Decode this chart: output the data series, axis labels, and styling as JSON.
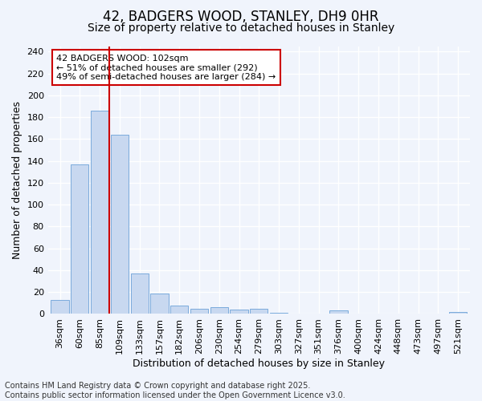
{
  "title": "42, BADGERS WOOD, STANLEY, DH9 0HR",
  "subtitle": "Size of property relative to detached houses in Stanley",
  "xlabel": "Distribution of detached houses by size in Stanley",
  "ylabel": "Number of detached properties",
  "categories": [
    "36sqm",
    "60sqm",
    "85sqm",
    "109sqm",
    "133sqm",
    "157sqm",
    "182sqm",
    "206sqm",
    "230sqm",
    "254sqm",
    "279sqm",
    "303sqm",
    "327sqm",
    "351sqm",
    "376sqm",
    "400sqm",
    "424sqm",
    "448sqm",
    "473sqm",
    "497sqm",
    "521sqm"
  ],
  "values": [
    13,
    137,
    186,
    164,
    37,
    19,
    8,
    5,
    6,
    4,
    5,
    1,
    0,
    0,
    3,
    0,
    0,
    0,
    0,
    0,
    2
  ],
  "bar_color": "#c8d8f0",
  "bar_edge_color": "#7aabdc",
  "background_color": "#f0f4fc",
  "grid_color": "#ffffff",
  "vline_x": 2.5,
  "vline_color": "#cc0000",
  "annotation_text": "42 BADGERS WOOD: 102sqm\n← 51% of detached houses are smaller (292)\n49% of semi-detached houses are larger (284) →",
  "annotation_box_color": "#ffffff",
  "annotation_box_edge": "#cc0000",
  "ylim": [
    0,
    245
  ],
  "yticks": [
    0,
    20,
    40,
    60,
    80,
    100,
    120,
    140,
    160,
    180,
    200,
    220,
    240
  ],
  "footnote": "Contains HM Land Registry data © Crown copyright and database right 2025.\nContains public sector information licensed under the Open Government Licence v3.0.",
  "title_fontsize": 12,
  "subtitle_fontsize": 10,
  "axis_label_fontsize": 9,
  "tick_fontsize": 8,
  "annotation_fontsize": 8,
  "footnote_fontsize": 7
}
